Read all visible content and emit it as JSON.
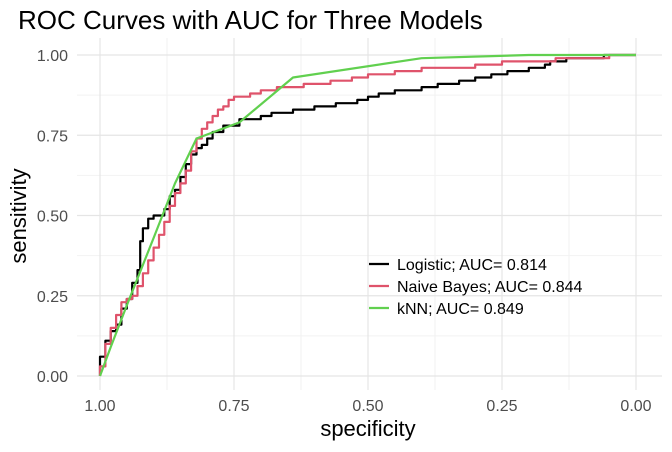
{
  "chart_data": {
    "type": "line",
    "title": "ROC Curves with AUC for Three Models",
    "xlabel": "specificity",
    "ylabel": "sensitivity",
    "x_reversed": true,
    "xlim": [
      1.0,
      0.0
    ],
    "ylim": [
      0.0,
      1.0
    ],
    "x_ticks": [
      "1.00",
      "0.75",
      "0.50",
      "0.25",
      "0.00"
    ],
    "y_ticks": [
      "0.00",
      "0.25",
      "0.50",
      "0.75",
      "1.00"
    ],
    "x_tick_values": [
      1.0,
      0.75,
      0.5,
      0.25,
      0.0
    ],
    "y_tick_values": [
      0.0,
      0.25,
      0.5,
      0.75,
      1.0
    ],
    "grid": true,
    "legend_position": "inside-bottom-right",
    "series": [
      {
        "name": "Logistic; AUC= 0.814",
        "color": "#000000",
        "step": true,
        "points": [
          [
            1.0,
            0.0
          ],
          [
            1.0,
            0.06
          ],
          [
            0.99,
            0.06
          ],
          [
            0.99,
            0.11
          ],
          [
            0.98,
            0.11
          ],
          [
            0.98,
            0.14
          ],
          [
            0.97,
            0.14
          ],
          [
            0.97,
            0.16
          ],
          [
            0.96,
            0.16
          ],
          [
            0.96,
            0.21
          ],
          [
            0.95,
            0.21
          ],
          [
            0.95,
            0.24
          ],
          [
            0.94,
            0.24
          ],
          [
            0.94,
            0.29
          ],
          [
            0.93,
            0.29
          ],
          [
            0.93,
            0.33
          ],
          [
            0.925,
            0.33
          ],
          [
            0.925,
            0.42
          ],
          [
            0.92,
            0.42
          ],
          [
            0.92,
            0.46
          ],
          [
            0.91,
            0.46
          ],
          [
            0.91,
            0.49
          ],
          [
            0.9,
            0.49
          ],
          [
            0.9,
            0.5
          ],
          [
            0.88,
            0.5
          ],
          [
            0.88,
            0.52
          ],
          [
            0.87,
            0.52
          ],
          [
            0.87,
            0.56
          ],
          [
            0.86,
            0.56
          ],
          [
            0.86,
            0.58
          ],
          [
            0.85,
            0.58
          ],
          [
            0.85,
            0.62
          ],
          [
            0.84,
            0.62
          ],
          [
            0.84,
            0.66
          ],
          [
            0.83,
            0.66
          ],
          [
            0.83,
            0.69
          ],
          [
            0.82,
            0.69
          ],
          [
            0.82,
            0.71
          ],
          [
            0.81,
            0.71
          ],
          [
            0.81,
            0.72
          ],
          [
            0.8,
            0.72
          ],
          [
            0.8,
            0.74
          ],
          [
            0.79,
            0.74
          ],
          [
            0.79,
            0.76
          ],
          [
            0.77,
            0.76
          ],
          [
            0.77,
            0.78
          ],
          [
            0.74,
            0.78
          ],
          [
            0.74,
            0.8
          ],
          [
            0.7,
            0.8
          ],
          [
            0.7,
            0.81
          ],
          [
            0.68,
            0.81
          ],
          [
            0.68,
            0.82
          ],
          [
            0.64,
            0.82
          ],
          [
            0.64,
            0.83
          ],
          [
            0.6,
            0.83
          ],
          [
            0.6,
            0.84
          ],
          [
            0.56,
            0.84
          ],
          [
            0.56,
            0.85
          ],
          [
            0.52,
            0.85
          ],
          [
            0.52,
            0.86
          ],
          [
            0.5,
            0.86
          ],
          [
            0.5,
            0.87
          ],
          [
            0.48,
            0.87
          ],
          [
            0.48,
            0.88
          ],
          [
            0.45,
            0.88
          ],
          [
            0.45,
            0.89
          ],
          [
            0.4,
            0.89
          ],
          [
            0.4,
            0.9
          ],
          [
            0.37,
            0.9
          ],
          [
            0.37,
            0.91
          ],
          [
            0.33,
            0.91
          ],
          [
            0.33,
            0.92
          ],
          [
            0.3,
            0.92
          ],
          [
            0.3,
            0.93
          ],
          [
            0.27,
            0.93
          ],
          [
            0.27,
            0.94
          ],
          [
            0.24,
            0.94
          ],
          [
            0.24,
            0.95
          ],
          [
            0.2,
            0.95
          ],
          [
            0.2,
            0.96
          ],
          [
            0.17,
            0.96
          ],
          [
            0.17,
            0.97
          ],
          [
            0.16,
            0.97
          ],
          [
            0.16,
            0.98
          ],
          [
            0.13,
            0.98
          ],
          [
            0.13,
            0.99
          ],
          [
            0.06,
            0.99
          ],
          [
            0.06,
            1.0
          ],
          [
            0.0,
            1.0
          ]
        ]
      },
      {
        "name": "Naive Bayes; AUC= 0.844",
        "color": "#DF536B",
        "step": true,
        "points": [
          [
            1.0,
            0.0
          ],
          [
            1.0,
            0.03
          ],
          [
            0.99,
            0.03
          ],
          [
            0.99,
            0.1
          ],
          [
            0.98,
            0.1
          ],
          [
            0.98,
            0.15
          ],
          [
            0.97,
            0.15
          ],
          [
            0.97,
            0.19
          ],
          [
            0.96,
            0.19
          ],
          [
            0.96,
            0.23
          ],
          [
            0.95,
            0.23
          ],
          [
            0.95,
            0.24
          ],
          [
            0.94,
            0.24
          ],
          [
            0.94,
            0.25
          ],
          [
            0.93,
            0.25
          ],
          [
            0.93,
            0.28
          ],
          [
            0.92,
            0.28
          ],
          [
            0.92,
            0.32
          ],
          [
            0.91,
            0.32
          ],
          [
            0.91,
            0.36
          ],
          [
            0.9,
            0.36
          ],
          [
            0.9,
            0.4
          ],
          [
            0.89,
            0.4
          ],
          [
            0.89,
            0.44
          ],
          [
            0.88,
            0.44
          ],
          [
            0.88,
            0.48
          ],
          [
            0.87,
            0.48
          ],
          [
            0.87,
            0.53
          ],
          [
            0.86,
            0.53
          ],
          [
            0.86,
            0.57
          ],
          [
            0.85,
            0.57
          ],
          [
            0.85,
            0.6
          ],
          [
            0.84,
            0.6
          ],
          [
            0.84,
            0.64
          ],
          [
            0.83,
            0.64
          ],
          [
            0.83,
            0.7
          ],
          [
            0.82,
            0.7
          ],
          [
            0.82,
            0.74
          ],
          [
            0.81,
            0.74
          ],
          [
            0.81,
            0.77
          ],
          [
            0.8,
            0.77
          ],
          [
            0.8,
            0.79
          ],
          [
            0.79,
            0.79
          ],
          [
            0.79,
            0.81
          ],
          [
            0.78,
            0.81
          ],
          [
            0.78,
            0.83
          ],
          [
            0.77,
            0.83
          ],
          [
            0.77,
            0.84
          ],
          [
            0.76,
            0.84
          ],
          [
            0.76,
            0.86
          ],
          [
            0.75,
            0.86
          ],
          [
            0.75,
            0.87
          ],
          [
            0.72,
            0.87
          ],
          [
            0.72,
            0.88
          ],
          [
            0.7,
            0.88
          ],
          [
            0.7,
            0.89
          ],
          [
            0.67,
            0.89
          ],
          [
            0.67,
            0.9
          ],
          [
            0.62,
            0.9
          ],
          [
            0.62,
            0.91
          ],
          [
            0.57,
            0.91
          ],
          [
            0.57,
            0.92
          ],
          [
            0.53,
            0.92
          ],
          [
            0.53,
            0.93
          ],
          [
            0.5,
            0.93
          ],
          [
            0.5,
            0.94
          ],
          [
            0.45,
            0.94
          ],
          [
            0.45,
            0.95
          ],
          [
            0.4,
            0.95
          ],
          [
            0.4,
            0.96
          ],
          [
            0.3,
            0.96
          ],
          [
            0.3,
            0.97
          ],
          [
            0.25,
            0.97
          ],
          [
            0.25,
            0.98
          ],
          [
            0.15,
            0.98
          ],
          [
            0.15,
            0.99
          ],
          [
            0.05,
            0.99
          ],
          [
            0.05,
            1.0
          ],
          [
            0.0,
            1.0
          ]
        ]
      },
      {
        "name": "kNN; AUC= 0.849",
        "color": "#61D04F",
        "step": false,
        "points": [
          [
            1.0,
            0.0
          ],
          [
            0.98,
            0.09
          ],
          [
            0.95,
            0.22
          ],
          [
            0.9,
            0.43
          ],
          [
            0.86,
            0.6
          ],
          [
            0.82,
            0.74
          ],
          [
            0.74,
            0.79
          ],
          [
            0.64,
            0.93
          ],
          [
            0.4,
            0.99
          ],
          [
            0.2,
            1.0
          ],
          [
            0.0,
            1.0
          ]
        ]
      }
    ]
  }
}
